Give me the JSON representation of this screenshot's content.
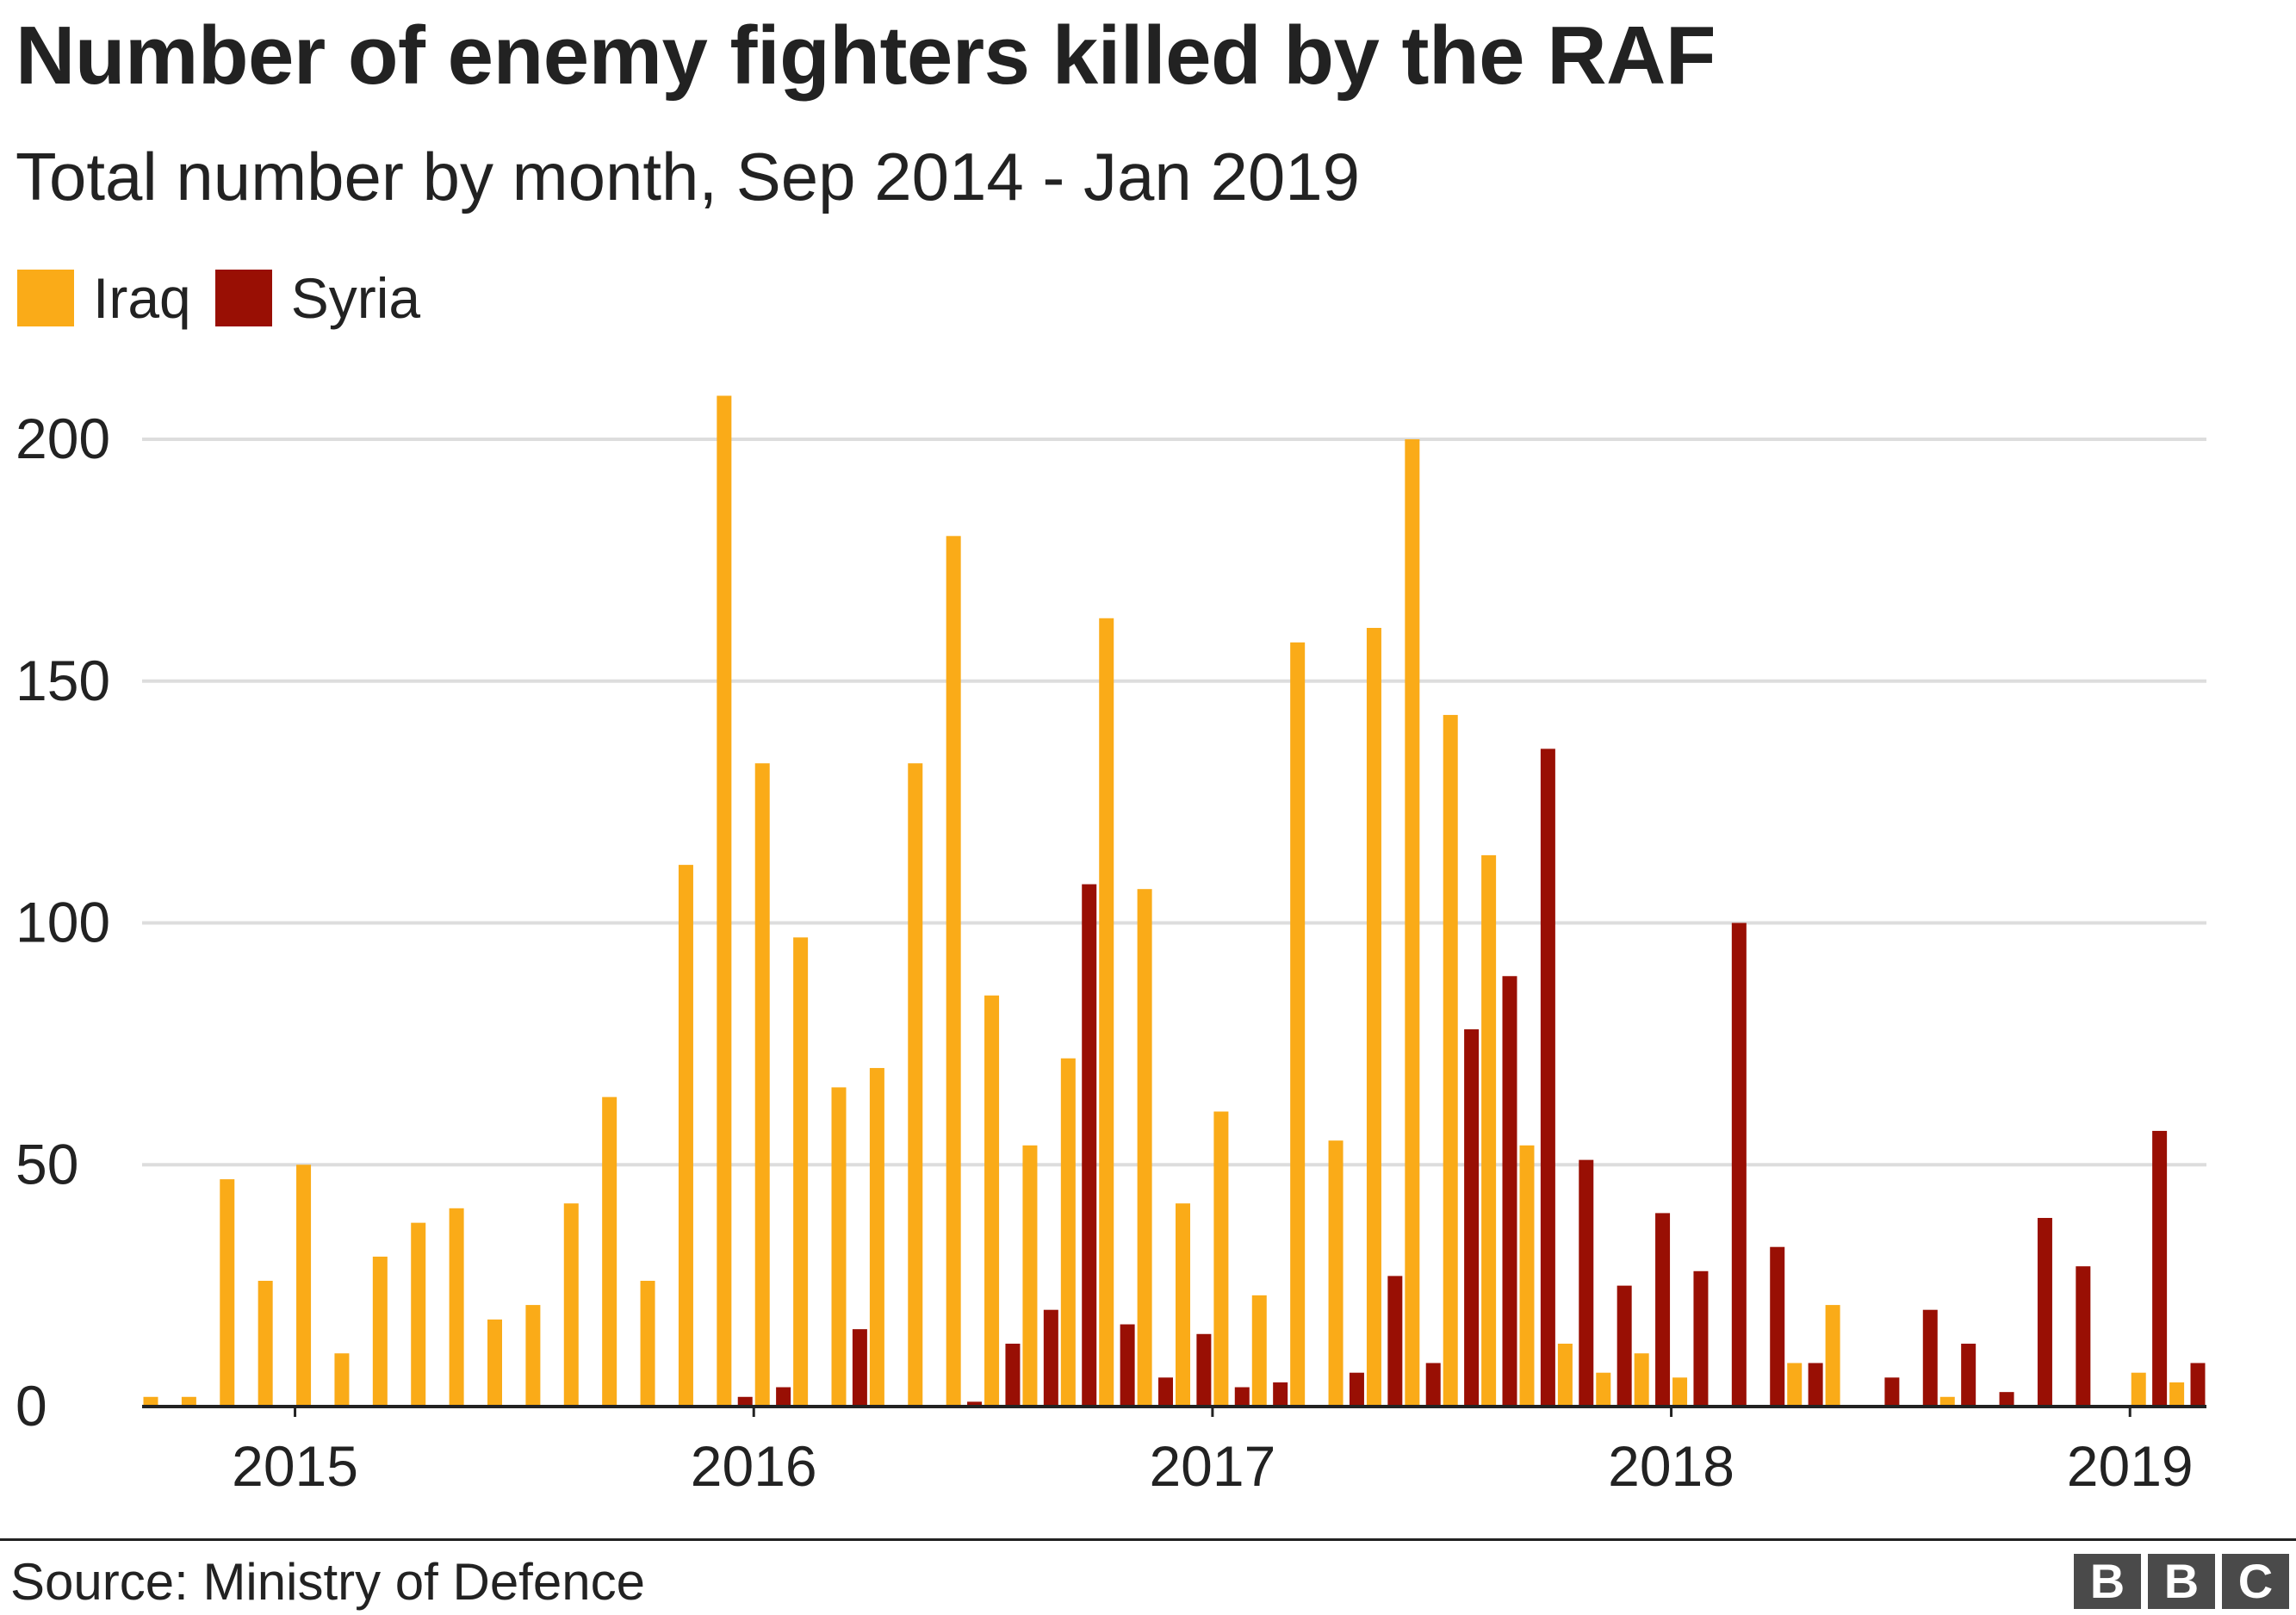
{
  "title": "Number of enemy fighters killed by the RAF",
  "subtitle": "Total number by month, Sep 2014 - Jan 2019",
  "source": "Source: Ministry of Defence",
  "logo_text": "BBC",
  "colors": {
    "iraq": "#faab18",
    "syria": "#990f04",
    "grid": "#dddddd",
    "axis": "#222222",
    "text": "#222222"
  },
  "chart_data": {
    "type": "bar",
    "series": [
      {
        "name": "Iraq",
        "values": [
          2,
          2,
          47,
          26,
          50,
          11,
          31,
          38,
          41,
          18,
          21,
          42,
          64,
          26,
          112,
          209,
          133,
          97,
          66,
          70,
          133,
          180,
          85,
          54,
          72,
          163,
          107,
          42,
          61,
          23,
          158,
          55,
          161,
          200,
          143,
          114,
          54,
          13,
          7,
          11,
          6,
          0,
          0,
          9,
          21,
          0,
          0,
          2,
          0,
          0,
          0,
          0,
          7,
          5
        ]
      },
      {
        "name": "Syria",
        "values": [
          0,
          0,
          0,
          0,
          0,
          0,
          0,
          0,
          0,
          0,
          0,
          0,
          0,
          0,
          0,
          2,
          4,
          0,
          16,
          0,
          0,
          1,
          13,
          20,
          108,
          17,
          6,
          15,
          4,
          5,
          0,
          7,
          27,
          9,
          78,
          89,
          136,
          51,
          25,
          40,
          28,
          100,
          33,
          9,
          0,
          6,
          20,
          13,
          3,
          39,
          29,
          0,
          57,
          9
        ]
      }
    ],
    "months": {
      "start": "2014-09",
      "end": "2019-02"
    },
    "x_ticks": [
      "2015",
      "2016",
      "2017",
      "2018",
      "2019"
    ],
    "y_ticks": [
      0,
      50,
      100,
      150,
      200
    ],
    "ylim": [
      0,
      210
    ],
    "grid": true,
    "legend_position": "top-left"
  }
}
